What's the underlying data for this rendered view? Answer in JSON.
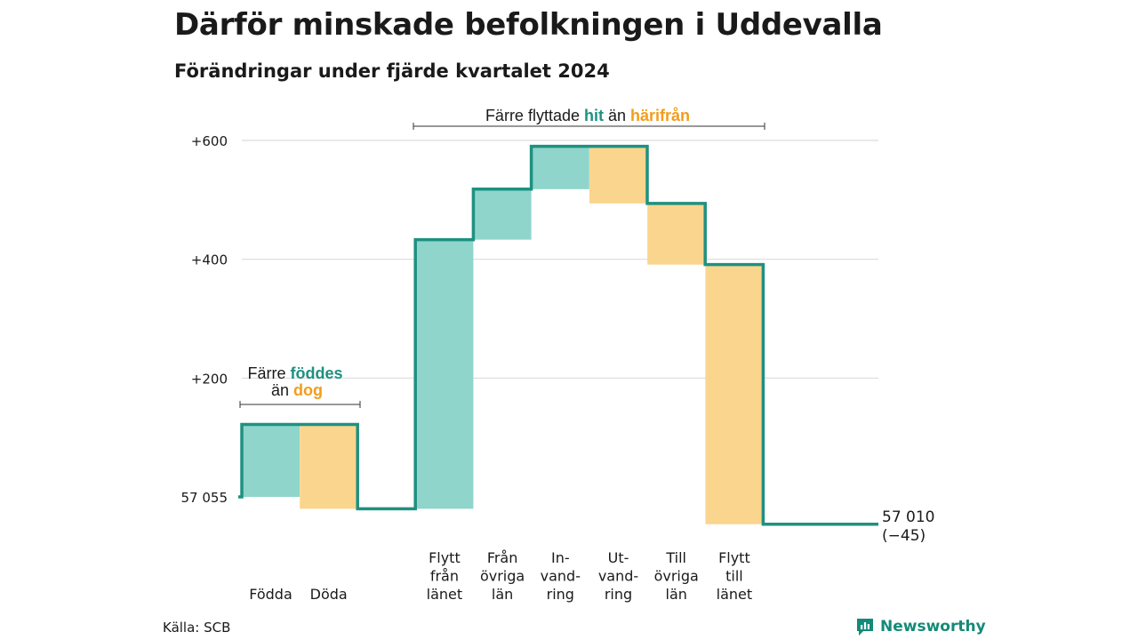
{
  "title": "Därför minskade befolkningen i Uddevalla",
  "subtitle": "Förändringar under fjärde kvartalet 2024",
  "source": "Källa: SCB",
  "brand": "Newsworthy",
  "colors": {
    "increase": "#8fd5cb",
    "decrease": "#fad58e",
    "line": "#1e9181",
    "teal_text": "#1e9181",
    "orange_text": "#f39c1c",
    "grid": "#dcdcdc"
  },
  "annotations": {
    "births": {
      "line1_pre": "Färre ",
      "line1_hi": "föddes",
      "line2_pre": "än ",
      "line2_hi": "dog"
    },
    "moves": {
      "pre": "Färre flyttade ",
      "hi1": "hit",
      "mid": " än ",
      "hi2": "härifrån"
    }
  },
  "chart_data": {
    "type": "waterfall",
    "start": {
      "label": "57 055",
      "value": 0
    },
    "end": {
      "label_line1": "57 010",
      "label_line2": "(−45)",
      "value": -45
    },
    "yticks": [
      {
        "value": 200,
        "label": "+200"
      },
      {
        "value": 400,
        "label": "+400"
      },
      {
        "value": 600,
        "label": "+600"
      }
    ],
    "ylim": [
      -45,
      620
    ],
    "grid": true,
    "steps": [
      {
        "label": [
          "Födda"
        ],
        "delta": 122,
        "kind": "increase"
      },
      {
        "label": [
          "Döda"
        ],
        "delta": -142,
        "kind": "decrease"
      },
      {
        "label": [
          "Flytt",
          "från",
          "länet"
        ],
        "delta": 453,
        "kind": "increase"
      },
      {
        "label": [
          "Från",
          "övriga",
          "län"
        ],
        "delta": 85,
        "kind": "increase"
      },
      {
        "label": [
          "In-",
          "vand-",
          "ring"
        ],
        "delta": 72,
        "kind": "increase"
      },
      {
        "label": [
          "Ut-",
          "vand-",
          "ring"
        ],
        "delta": -96,
        "kind": "decrease"
      },
      {
        "label": [
          "Till",
          "övriga",
          "län"
        ],
        "delta": -103,
        "kind": "decrease"
      },
      {
        "label": [
          "Flytt",
          "till",
          "länet"
        ],
        "delta": -437,
        "kind": "decrease"
      }
    ]
  }
}
